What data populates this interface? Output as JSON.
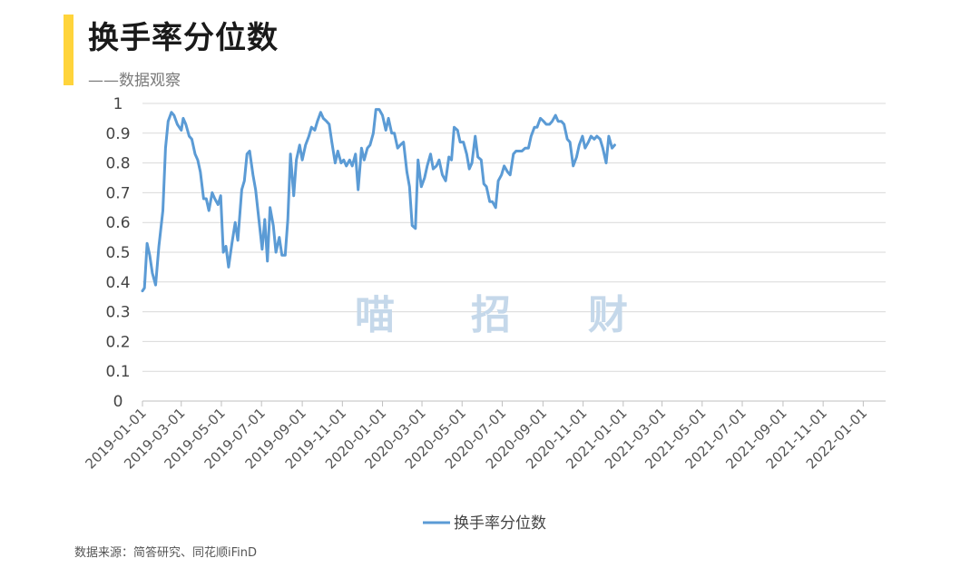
{
  "header": {
    "title": "换手率分位数",
    "subtitle": "——数据观察",
    "accent_color": "#FFD43B"
  },
  "watermark": [
    "喵",
    "招",
    "财"
  ],
  "source": "数据来源：简答研究、同花顺iFinD",
  "chart_data": {
    "type": "line",
    "title": "换手率分位数",
    "xlabel": "",
    "ylabel": "",
    "ylim": [
      0,
      1
    ],
    "yticks": [
      "0",
      "0.1",
      "0.2",
      "0.3",
      "0.4",
      "0.5",
      "0.6",
      "0.7",
      "0.8",
      "0.9",
      "1"
    ],
    "xlim": [
      "2019-01-01",
      "2022-02-04"
    ],
    "xticks": [
      "2019-01-01",
      "2019-03-01",
      "2019-05-01",
      "2019-07-01",
      "2019-09-01",
      "2019-11-01",
      "2020-01-01",
      "2020-03-01",
      "2020-05-01",
      "2020-07-01",
      "2020-09-01",
      "2020-11-01",
      "2021-01-01",
      "2021-03-01",
      "2021-05-01",
      "2021-07-01",
      "2021-09-01",
      "2021-11-01",
      "2022-01-01"
    ],
    "grid": true,
    "legend": "bottom-center",
    "series": [
      {
        "name": "换手率分位数",
        "color": "#5B9BD5",
        "points": [
          [
            "2019-01-01",
            0.37
          ],
          [
            "2019-01-04",
            0.38
          ],
          [
            "2019-01-08",
            0.53
          ],
          [
            "2019-01-12",
            0.49
          ],
          [
            "2019-01-16",
            0.43
          ],
          [
            "2019-01-21",
            0.39
          ],
          [
            "2019-01-26",
            0.52
          ],
          [
            "2019-02-01",
            0.64
          ],
          [
            "2019-02-05",
            0.85
          ],
          [
            "2019-02-09",
            0.94
          ],
          [
            "2019-02-14",
            0.97
          ],
          [
            "2019-02-18",
            0.96
          ],
          [
            "2019-02-23",
            0.93
          ],
          [
            "2019-03-01",
            0.91
          ],
          [
            "2019-03-04",
            0.95
          ],
          [
            "2019-03-08",
            0.93
          ],
          [
            "2019-03-13",
            0.89
          ],
          [
            "2019-03-17",
            0.88
          ],
          [
            "2019-03-22",
            0.83
          ],
          [
            "2019-03-26",
            0.81
          ],
          [
            "2019-03-30",
            0.77
          ],
          [
            "2019-04-04",
            0.68
          ],
          [
            "2019-04-08",
            0.68
          ],
          [
            "2019-04-12",
            0.64
          ],
          [
            "2019-04-17",
            0.7
          ],
          [
            "2019-04-21",
            0.68
          ],
          [
            "2019-04-26",
            0.66
          ],
          [
            "2019-04-30",
            0.69
          ],
          [
            "2019-05-04",
            0.5
          ],
          [
            "2019-05-08",
            0.52
          ],
          [
            "2019-05-12",
            0.45
          ],
          [
            "2019-05-17",
            0.53
          ],
          [
            "2019-05-22",
            0.6
          ],
          [
            "2019-05-26",
            0.54
          ],
          [
            "2019-06-01",
            0.71
          ],
          [
            "2019-06-05",
            0.74
          ],
          [
            "2019-06-09",
            0.83
          ],
          [
            "2019-06-13",
            0.84
          ],
          [
            "2019-06-18",
            0.76
          ],
          [
            "2019-06-22",
            0.71
          ],
          [
            "2019-06-27",
            0.61
          ],
          [
            "2019-07-02",
            0.51
          ],
          [
            "2019-07-06",
            0.61
          ],
          [
            "2019-07-10",
            0.47
          ],
          [
            "2019-07-14",
            0.65
          ],
          [
            "2019-07-19",
            0.59
          ],
          [
            "2019-07-23",
            0.5
          ],
          [
            "2019-07-28",
            0.55
          ],
          [
            "2019-08-01",
            0.49
          ],
          [
            "2019-08-06",
            0.49
          ],
          [
            "2019-08-10",
            0.61
          ],
          [
            "2019-08-14",
            0.83
          ],
          [
            "2019-08-19",
            0.69
          ],
          [
            "2019-08-23",
            0.81
          ],
          [
            "2019-08-28",
            0.86
          ],
          [
            "2019-09-01",
            0.81
          ],
          [
            "2019-09-06",
            0.86
          ],
          [
            "2019-09-11",
            0.89
          ],
          [
            "2019-09-15",
            0.92
          ],
          [
            "2019-09-20",
            0.91
          ],
          [
            "2019-09-24",
            0.94
          ],
          [
            "2019-09-29",
            0.97
          ],
          [
            "2019-10-03",
            0.95
          ],
          [
            "2019-10-08",
            0.94
          ],
          [
            "2019-10-12",
            0.93
          ],
          [
            "2019-10-16",
            0.87
          ],
          [
            "2019-10-21",
            0.8
          ],
          [
            "2019-10-25",
            0.84
          ],
          [
            "2019-10-30",
            0.8
          ],
          [
            "2019-11-03",
            0.81
          ],
          [
            "2019-11-07",
            0.79
          ],
          [
            "2019-11-12",
            0.81
          ],
          [
            "2019-11-16",
            0.79
          ],
          [
            "2019-11-21",
            0.83
          ],
          [
            "2019-11-25",
            0.71
          ],
          [
            "2019-11-30",
            0.85
          ],
          [
            "2019-12-04",
            0.81
          ],
          [
            "2019-12-09",
            0.85
          ],
          [
            "2019-12-13",
            0.86
          ],
          [
            "2019-12-18",
            0.9
          ],
          [
            "2019-12-22",
            0.98
          ],
          [
            "2019-12-27",
            0.98
          ],
          [
            "2020-01-01",
            0.96
          ],
          [
            "2020-01-06",
            0.91
          ],
          [
            "2020-01-10",
            0.95
          ],
          [
            "2020-01-15",
            0.9
          ],
          [
            "2020-01-19",
            0.9
          ],
          [
            "2020-01-24",
            0.85
          ],
          [
            "2020-01-28",
            0.86
          ],
          [
            "2020-02-02",
            0.87
          ],
          [
            "2020-02-07",
            0.77
          ],
          [
            "2020-02-11",
            0.72
          ],
          [
            "2020-02-15",
            0.59
          ],
          [
            "2020-02-20",
            0.58
          ],
          [
            "2020-02-24",
            0.81
          ],
          [
            "2020-02-29",
            0.72
          ],
          [
            "2020-03-05",
            0.75
          ],
          [
            "2020-03-09",
            0.79
          ],
          [
            "2020-03-14",
            0.83
          ],
          [
            "2020-03-18",
            0.78
          ],
          [
            "2020-03-23",
            0.79
          ],
          [
            "2020-03-27",
            0.81
          ],
          [
            "2020-04-01",
            0.76
          ],
          [
            "2020-04-06",
            0.74
          ],
          [
            "2020-04-11",
            0.82
          ],
          [
            "2020-04-15",
            0.81
          ],
          [
            "2020-04-19",
            0.92
          ],
          [
            "2020-04-24",
            0.91
          ],
          [
            "2020-04-28",
            0.87
          ],
          [
            "2020-05-03",
            0.87
          ],
          [
            "2020-05-08",
            0.83
          ],
          [
            "2020-05-12",
            0.78
          ],
          [
            "2020-05-16",
            0.8
          ],
          [
            "2020-05-21",
            0.89
          ],
          [
            "2020-05-25",
            0.82
          ],
          [
            "2020-05-30",
            0.81
          ],
          [
            "2020-06-03",
            0.73
          ],
          [
            "2020-06-07",
            0.72
          ],
          [
            "2020-06-12",
            0.67
          ],
          [
            "2020-06-16",
            0.67
          ],
          [
            "2020-06-21",
            0.65
          ],
          [
            "2020-06-25",
            0.74
          ],
          [
            "2020-06-30",
            0.76
          ],
          [
            "2020-07-04",
            0.79
          ],
          [
            "2020-07-09",
            0.77
          ],
          [
            "2020-07-13",
            0.76
          ],
          [
            "2020-07-18",
            0.83
          ],
          [
            "2020-07-22",
            0.84
          ],
          [
            "2020-07-27",
            0.84
          ],
          [
            "2020-07-31",
            0.84
          ],
          [
            "2020-08-05",
            0.85
          ],
          [
            "2020-08-10",
            0.85
          ],
          [
            "2020-08-14",
            0.89
          ],
          [
            "2020-08-19",
            0.92
          ],
          [
            "2020-08-23",
            0.92
          ],
          [
            "2020-08-28",
            0.95
          ],
          [
            "2020-09-02",
            0.94
          ],
          [
            "2020-09-06",
            0.93
          ],
          [
            "2020-09-11",
            0.93
          ],
          [
            "2020-09-15",
            0.94
          ],
          [
            "2020-09-20",
            0.96
          ],
          [
            "2020-09-24",
            0.94
          ],
          [
            "2020-09-29",
            0.94
          ],
          [
            "2020-10-03",
            0.93
          ],
          [
            "2020-10-08",
            0.88
          ],
          [
            "2020-10-12",
            0.87
          ],
          [
            "2020-10-17",
            0.79
          ],
          [
            "2020-10-22",
            0.82
          ],
          [
            "2020-10-26",
            0.86
          ],
          [
            "2020-10-31",
            0.89
          ],
          [
            "2020-11-04",
            0.85
          ],
          [
            "2020-11-09",
            0.87
          ],
          [
            "2020-11-13",
            0.89
          ],
          [
            "2020-11-18",
            0.88
          ],
          [
            "2020-11-22",
            0.89
          ],
          [
            "2020-11-27",
            0.88
          ],
          [
            "2020-12-01",
            0.85
          ],
          [
            "2020-12-06",
            0.8
          ],
          [
            "2020-12-10",
            0.89
          ],
          [
            "2020-12-15",
            0.85
          ],
          [
            "2020-12-19",
            0.86
          ]
        ]
      }
    ]
  }
}
